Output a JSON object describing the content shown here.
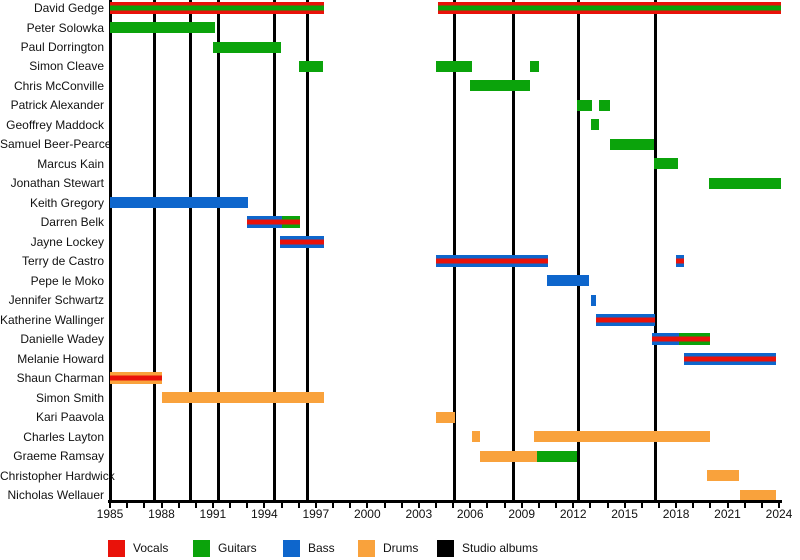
{
  "chart_data": {
    "type": "timeline",
    "x_axis": {
      "start": 1985,
      "end": 2024,
      "minor_tick_step": 1,
      "label_step": 3,
      "tick_labels": [
        "1985",
        "1988",
        "1991",
        "1994",
        "1997",
        "2000",
        "2003",
        "2006",
        "2009",
        "2012",
        "2015",
        "2018",
        "2021",
        "2024"
      ]
    },
    "role_colors": {
      "vocals": "#e9120a",
      "guitars": "#0ba30b",
      "bass": "#0e66cc",
      "drums": "#f9a23c",
      "albums": "#000000"
    },
    "legend": [
      {
        "label": "Vocals",
        "role": "vocals",
        "color": "#e9120a"
      },
      {
        "label": "Guitars",
        "role": "guitars",
        "color": "#0ba30b"
      },
      {
        "label": "Bass",
        "role": "bass",
        "color": "#0e66cc"
      },
      {
        "label": "Drums",
        "role": "drums",
        "color": "#f9a23c"
      },
      {
        "label": "Studio albums",
        "role": "albums",
        "color": "#000000"
      }
    ],
    "studio_album_years": [
      1987.6,
      1989.7,
      1991.35,
      1994.6,
      1996.5,
      2005.1,
      2008.5,
      2012.3,
      2016.8
    ],
    "members": [
      {
        "name": "David Gedge",
        "segments": [
          {
            "from": 1985.0,
            "to": 1997.5,
            "roles": [
              "vocals",
              "guitars"
            ]
          },
          {
            "from": 2004.1,
            "to": 2024.1,
            "roles": [
              "vocals",
              "guitars"
            ]
          }
        ]
      },
      {
        "name": "Peter Solowka",
        "segments": [
          {
            "from": 1985.0,
            "to": 1991.1,
            "roles": [
              "guitars"
            ]
          }
        ]
      },
      {
        "name": "Paul Dorrington",
        "segments": [
          {
            "from": 1991.0,
            "to": 1995.0,
            "roles": [
              "guitars"
            ]
          }
        ]
      },
      {
        "name": "Simon Cleave",
        "segments": [
          {
            "from": 1996.0,
            "to": 1997.4,
            "roles": [
              "guitars"
            ]
          },
          {
            "from": 2004.0,
            "to": 2006.1,
            "roles": [
              "guitars"
            ]
          },
          {
            "from": 2009.5,
            "to": 2010.0,
            "roles": [
              "guitars"
            ]
          }
        ]
      },
      {
        "name": "Chris McConville",
        "segments": [
          {
            "from": 2006.0,
            "to": 2009.5,
            "roles": [
              "guitars"
            ]
          }
        ]
      },
      {
        "name": "Patrick Alexander",
        "segments": [
          {
            "from": 2012.25,
            "to": 2013.1,
            "roles": [
              "guitars"
            ]
          },
          {
            "from": 2013.5,
            "to": 2014.15,
            "roles": [
              "guitars"
            ]
          }
        ]
      },
      {
        "name": "Geoffrey Maddock",
        "segments": [
          {
            "from": 2013.05,
            "to": 2013.5,
            "roles": [
              "guitars"
            ]
          }
        ]
      },
      {
        "name": "Samuel Beer-Pearce",
        "segments": [
          {
            "from": 2014.15,
            "to": 2016.7,
            "roles": [
              "guitars"
            ]
          }
        ]
      },
      {
        "name": "Marcus Kain",
        "segments": [
          {
            "from": 2016.7,
            "to": 2018.1,
            "roles": [
              "guitars"
            ]
          }
        ]
      },
      {
        "name": "Jonathan Stewart",
        "segments": [
          {
            "from": 2019.9,
            "to": 2024.1,
            "roles": [
              "guitars"
            ]
          }
        ]
      },
      {
        "name": "Keith Gregory",
        "segments": [
          {
            "from": 1985.0,
            "to": 1993.05,
            "roles": [
              "bass"
            ]
          }
        ]
      },
      {
        "name": "Darren Belk",
        "segments": [
          {
            "from": 1993.0,
            "to": 1995.05,
            "roles": [
              "bass",
              "vocals"
            ]
          },
          {
            "from": 1995.05,
            "to": 1996.05,
            "roles": [
              "guitars",
              "vocals"
            ]
          }
        ]
      },
      {
        "name": "Jayne Lockey",
        "segments": [
          {
            "from": 1994.9,
            "to": 1997.5,
            "roles": [
              "bass",
              "vocals"
            ]
          }
        ]
      },
      {
        "name": "Terry de Castro",
        "segments": [
          {
            "from": 2004.0,
            "to": 2010.55,
            "roles": [
              "bass",
              "vocals"
            ]
          },
          {
            "from": 2018.0,
            "to": 2018.45,
            "roles": [
              "bass",
              "vocals"
            ]
          }
        ]
      },
      {
        "name": "Pepe le Moko",
        "segments": [
          {
            "from": 2010.45,
            "to": 2012.9,
            "roles": [
              "bass"
            ]
          }
        ]
      },
      {
        "name": "Jennifer Schwartz",
        "segments": [
          {
            "from": 2013.05,
            "to": 2013.35,
            "roles": [
              "bass"
            ]
          }
        ]
      },
      {
        "name": "Katherine Wallinger",
        "segments": [
          {
            "from": 2013.35,
            "to": 2016.8,
            "roles": [
              "bass",
              "vocals"
            ]
          }
        ]
      },
      {
        "name": "Danielle Wadey",
        "segments": [
          {
            "from": 2016.6,
            "to": 2018.15,
            "roles": [
              "bass",
              "vocals"
            ]
          },
          {
            "from": 2018.15,
            "to": 2020.0,
            "roles": [
              "guitars",
              "vocals"
            ]
          }
        ]
      },
      {
        "name": "Melanie Howard",
        "segments": [
          {
            "from": 2018.45,
            "to": 2023.85,
            "roles": [
              "bass",
              "vocals"
            ]
          }
        ]
      },
      {
        "name": "Shaun Charman",
        "segments": [
          {
            "from": 1985.0,
            "to": 1988.05,
            "roles": [
              "drums",
              "vocals"
            ]
          }
        ]
      },
      {
        "name": "Simon Smith",
        "segments": [
          {
            "from": 1988.05,
            "to": 1997.5,
            "roles": [
              "drums"
            ]
          }
        ]
      },
      {
        "name": "Kari Paavola",
        "segments": [
          {
            "from": 2004.0,
            "to": 2005.1,
            "roles": [
              "drums"
            ]
          }
        ]
      },
      {
        "name": "Charles Layton",
        "segments": [
          {
            "from": 2006.1,
            "to": 2006.55,
            "roles": [
              "drums"
            ]
          },
          {
            "from": 2009.7,
            "to": 2020.0,
            "roles": [
              "drums"
            ]
          }
        ]
      },
      {
        "name": "Graeme Ramsay",
        "segments": [
          {
            "from": 2006.55,
            "to": 2009.9,
            "roles": [
              "drums"
            ]
          },
          {
            "from": 2009.9,
            "to": 2012.2,
            "roles": [
              "guitars"
            ]
          }
        ]
      },
      {
        "name": "Christopher Hardwick",
        "segments": [
          {
            "from": 2019.8,
            "to": 2021.65,
            "roles": [
              "drums"
            ]
          }
        ]
      },
      {
        "name": "Nicholas Wellauer",
        "segments": [
          {
            "from": 2021.7,
            "to": 2023.8,
            "roles": [
              "drums"
            ]
          }
        ]
      }
    ]
  }
}
